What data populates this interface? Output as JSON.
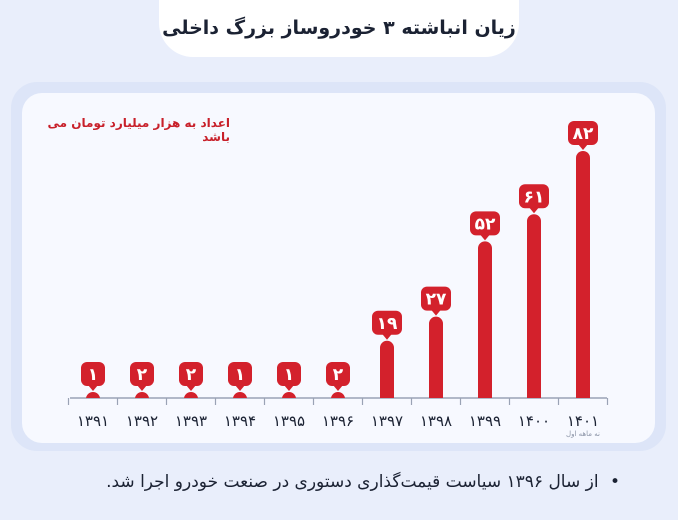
{
  "header": {
    "title": "زیان انباشته ۳ خودروساز بزرگ داخلی"
  },
  "note": "اعداد به هزار میلیارد تومان می باشد",
  "footnote": {
    "bullet": "•",
    "text": "از سال ۱۳۹۶ سیاست قیمت‌گذاری دستوری در صنعت خودرو اجرا شد."
  },
  "colors": {
    "bar": "#d3212c",
    "axis": "#9aa3b5",
    "text": "#1b2233"
  },
  "chart_data": {
    "type": "bar",
    "categories": [
      "۱۳۹۱",
      "۱۳۹۲",
      "۱۳۹۳",
      "۱۳۹۴",
      "۱۳۹۵",
      "۱۳۹۶",
      "۱۳۹۷",
      "۱۳۹۸",
      "۱۳۹۹",
      "۱۴۰۰",
      "۱۴۰۱"
    ],
    "values": [
      1,
      2,
      2,
      1,
      1,
      2,
      19,
      27,
      52,
      61,
      82
    ],
    "value_labels": [
      "۱",
      "۲",
      "۲",
      "۱",
      "۱",
      "۲",
      "۱۹",
      "۲۷",
      "۵۲",
      "۶۱",
      "۸۲"
    ],
    "category_notes": [
      "",
      "",
      "",
      "",
      "",
      "",
      "",
      "",
      "",
      "",
      "نه ماهه اول"
    ],
    "ylim": [
      0,
      82
    ],
    "title": "",
    "xlabel": "",
    "ylabel": "",
    "grid": false
  }
}
